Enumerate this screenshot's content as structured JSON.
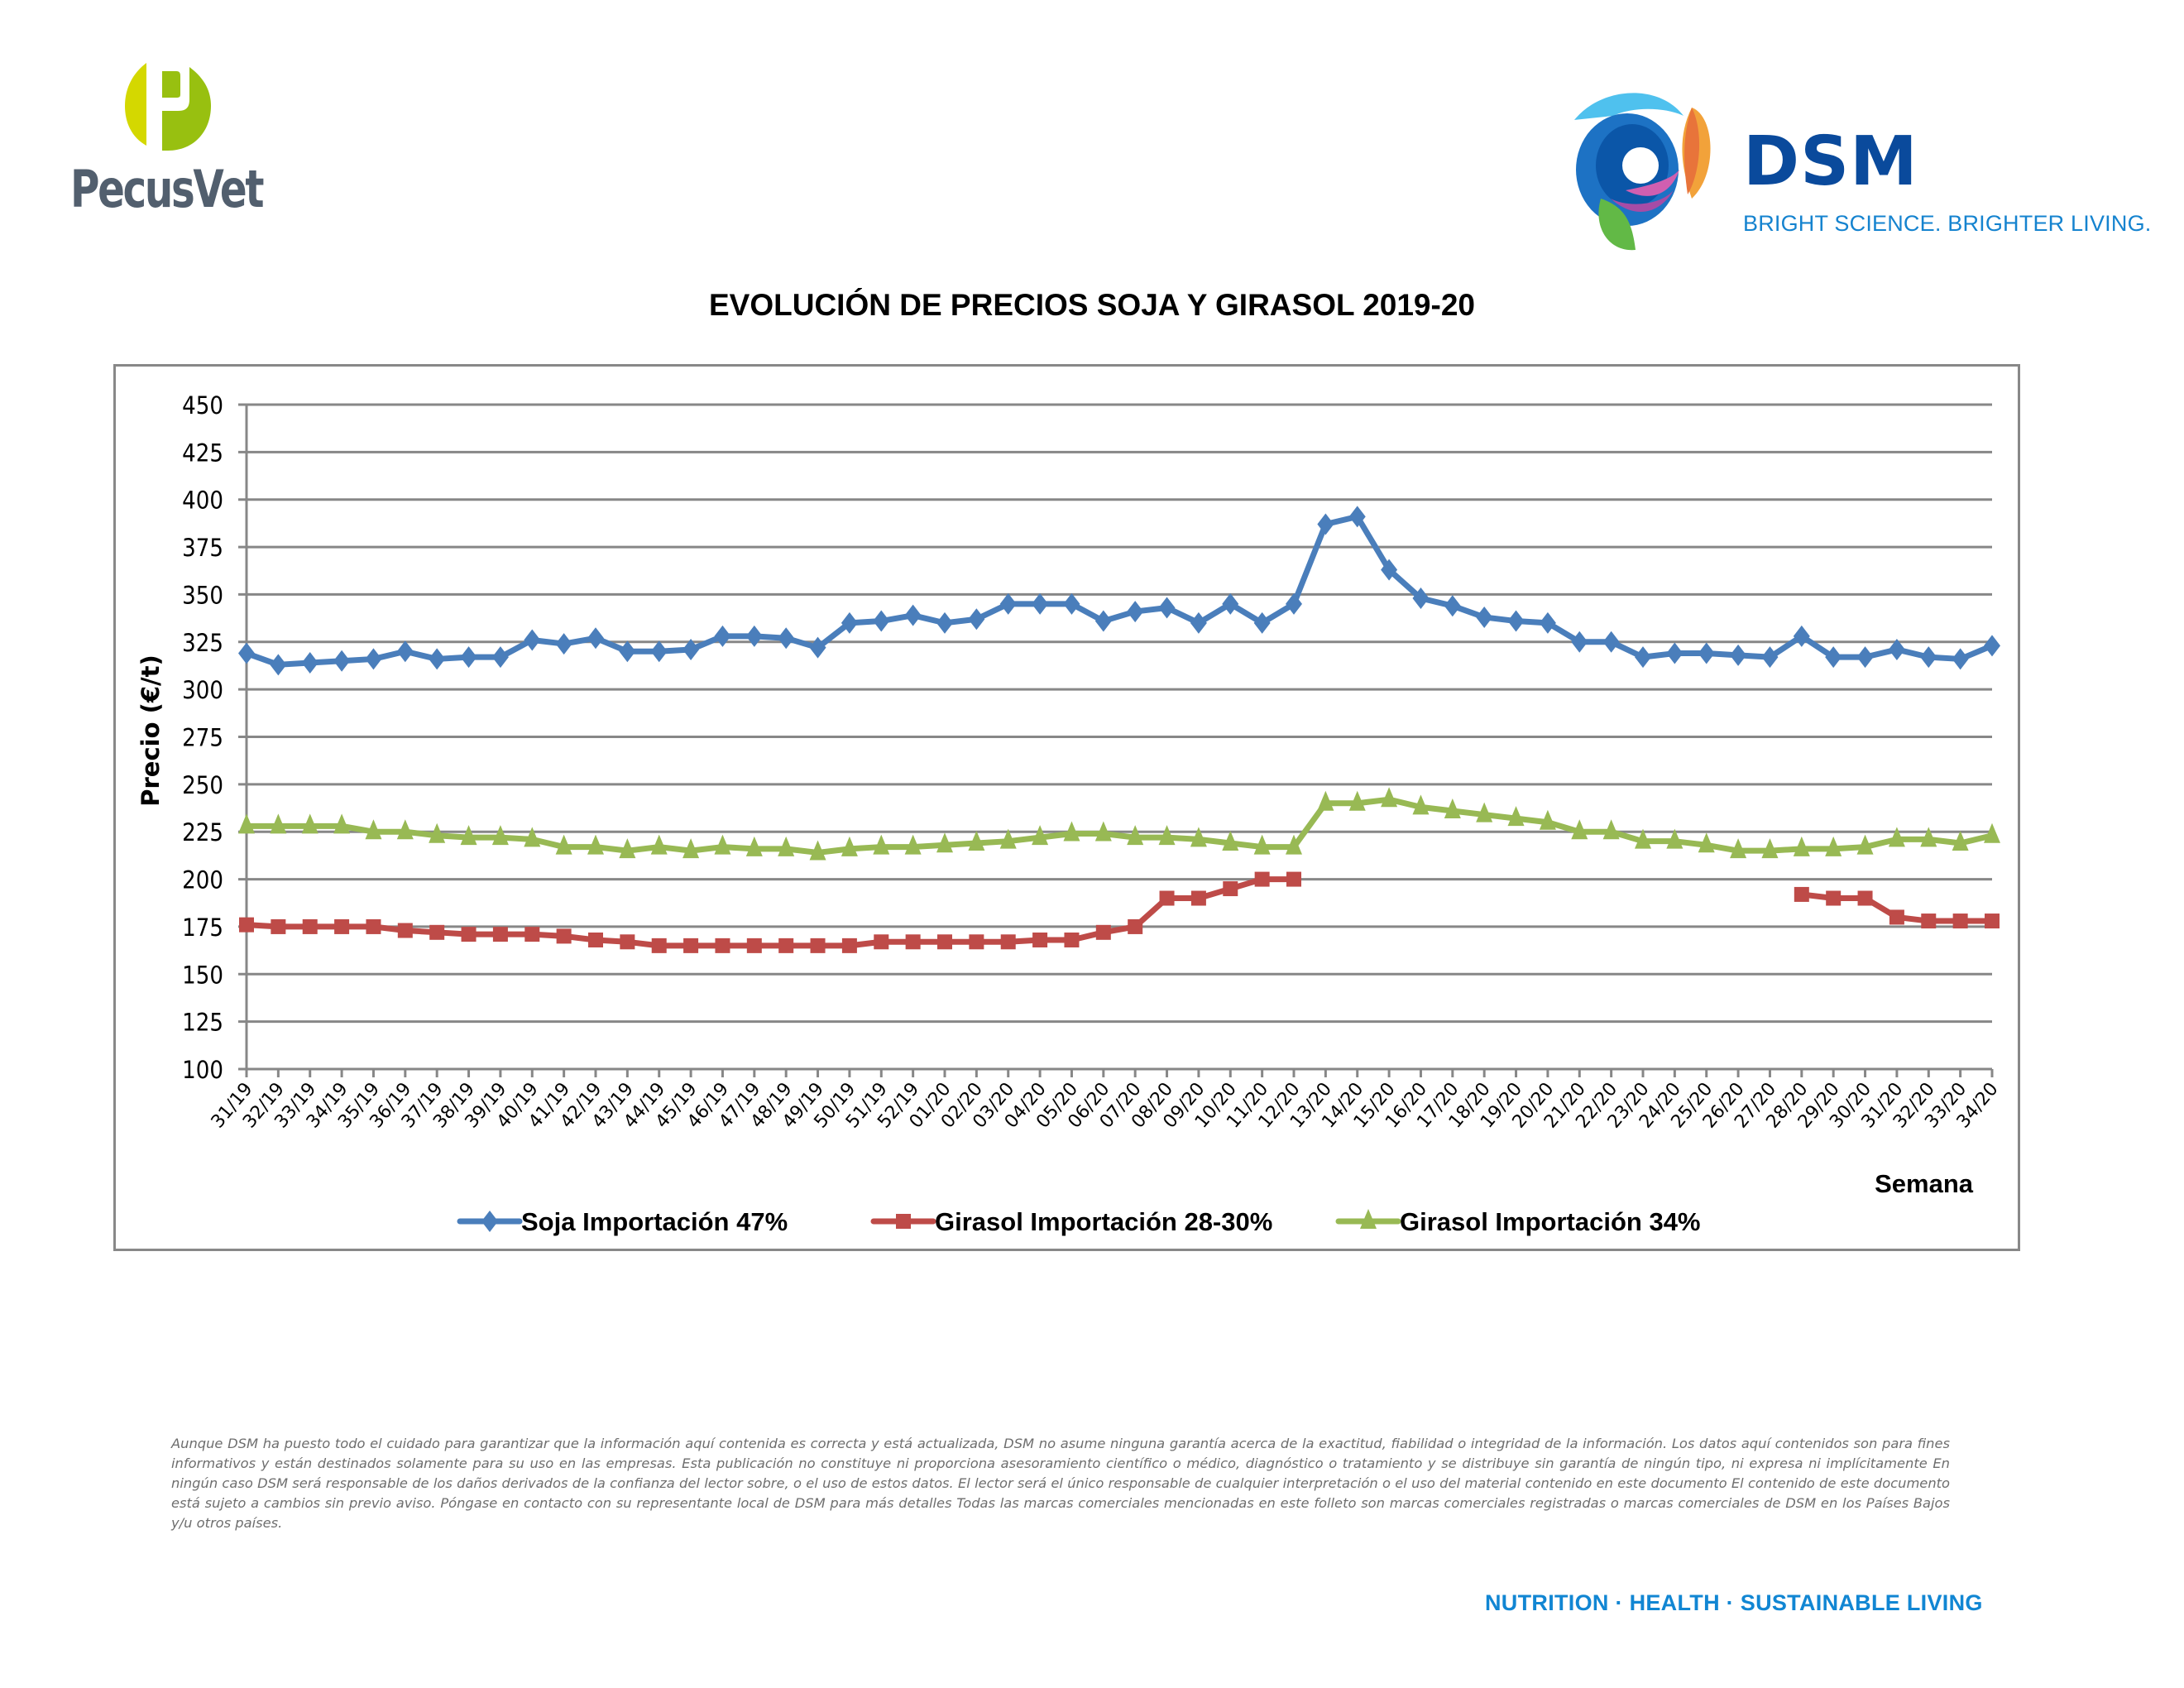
{
  "header": {
    "left_logo": {
      "name": "PecusVet",
      "colors": {
        "light_green": "#d4d800",
        "green": "#98c010",
        "text": "#525f6e"
      }
    },
    "right_logo": {
      "name": "DSM",
      "tagline": "BRIGHT SCIENCE. BRIGHTER LIVING.",
      "colors": {
        "word": "#0a4a9c",
        "tagline": "#1583cf"
      }
    }
  },
  "chart_data": {
    "type": "line",
    "title": "EVOLUCIÓN DE PRECIOS SOJA Y GIRASOL 2019-20",
    "xlabel": "Semana",
    "ylabel": "Precio (€/t)",
    "ylim": [
      100,
      450
    ],
    "yticks": [
      100,
      125,
      150,
      175,
      200,
      225,
      250,
      275,
      300,
      325,
      350,
      375,
      400,
      425,
      450
    ],
    "grid": true,
    "legend_position": "bottom",
    "categories": [
      "31/19",
      "32/19",
      "33/19",
      "34/19",
      "35/19",
      "36/19",
      "37/19",
      "38/19",
      "39/19",
      "40/19",
      "41/19",
      "42/19",
      "43/19",
      "44/19",
      "45/19",
      "46/19",
      "47/19",
      "48/19",
      "49/19",
      "50/19",
      "51/19",
      "52/19",
      "01/20",
      "02/20",
      "03/20",
      "04/20",
      "05/20",
      "06/20",
      "07/20",
      "08/20",
      "09/20",
      "10/20",
      "11/20",
      "12/20",
      "13/20",
      "14/20",
      "15/20",
      "16/20",
      "17/20",
      "18/20",
      "19/20",
      "20/20",
      "21/20",
      "22/20",
      "23/20",
      "24/20",
      "25/20",
      "26/20",
      "27/20",
      "28/20",
      "29/20",
      "30/20",
      "31/20",
      "32/20",
      "33/20",
      "34/20"
    ],
    "series": [
      {
        "name": "Soja Importación 47%",
        "color": "#4a7ebb",
        "marker": "diamond",
        "values": [
          319,
          313,
          314,
          315,
          316,
          320,
          316,
          317,
          317,
          326,
          324,
          327,
          320,
          320,
          321,
          328,
          328,
          327,
          322,
          335,
          336,
          339,
          335,
          337,
          345,
          345,
          345,
          336,
          341,
          343,
          335,
          345,
          335,
          345,
          387,
          391,
          363,
          348,
          344,
          338,
          336,
          335,
          325,
          325,
          317,
          319,
          319,
          318,
          317,
          328,
          317,
          317,
          321,
          317,
          316,
          323
        ]
      },
      {
        "name": "Girasol Importación 28-30%",
        "color": "#be4b48",
        "marker": "square",
        "values": [
          176,
          175,
          175,
          175,
          175,
          173,
          172,
          171,
          171,
          171,
          170,
          168,
          167,
          165,
          165,
          165,
          165,
          165,
          165,
          165,
          167,
          167,
          167,
          167,
          167,
          168,
          168,
          172,
          175,
          190,
          190,
          195,
          200,
          200,
          null,
          null,
          null,
          null,
          null,
          null,
          null,
          null,
          null,
          null,
          null,
          null,
          null,
          null,
          null,
          192,
          190,
          190,
          180,
          178,
          178,
          178
        ]
      },
      {
        "name": "Girasol Importación 34%",
        "color": "#98b954",
        "marker": "triangle",
        "values": [
          228,
          228,
          228,
          228,
          225,
          225,
          223,
          222,
          222,
          221,
          217,
          217,
          215,
          217,
          215,
          217,
          216,
          216,
          214,
          216,
          217,
          217,
          218,
          219,
          220,
          222,
          224,
          224,
          222,
          222,
          221,
          219,
          217,
          217,
          240,
          240,
          242,
          238,
          236,
          234,
          232,
          230,
          225,
          225,
          220,
          220,
          218,
          215,
          215,
          216,
          216,
          217,
          221,
          221,
          219,
          223
        ]
      }
    ]
  },
  "footer": {
    "disclaimer": "Aunque DSM ha puesto todo el cuidado para garantizar que la información aquí contenida es correcta y está actualizada, DSM no asume ninguna garantía acerca de la exactitud, fiabilidad o integridad de la información. Los datos aquí contenidos son para fines informativos y están destinados solamente para su uso en las empresas. Esta publicación no constituye ni proporciona asesoramiento científico o médico, diagnóstico o tratamiento y se distribuye sin garantía de ningún tipo, ni expresa ni implícitamente En ningún caso DSM será responsable de los daños derivados de la confianza del lector sobre, o el uso de estos datos. El lector será el único responsable de cualquier interpretación o el uso del material contenido en este documento El contenido de este documento está sujeto a cambios sin previo aviso. Póngase en contacto con su representante local de DSM para más detalles Todas las marcas comerciales mencionadas en este folleto son marcas comerciales registradas o marcas comerciales de DSM en los Países Bajos y/u otros países.",
    "tagline": "NUTRITION · HEALTH · SUSTAINABLE LIVING"
  }
}
